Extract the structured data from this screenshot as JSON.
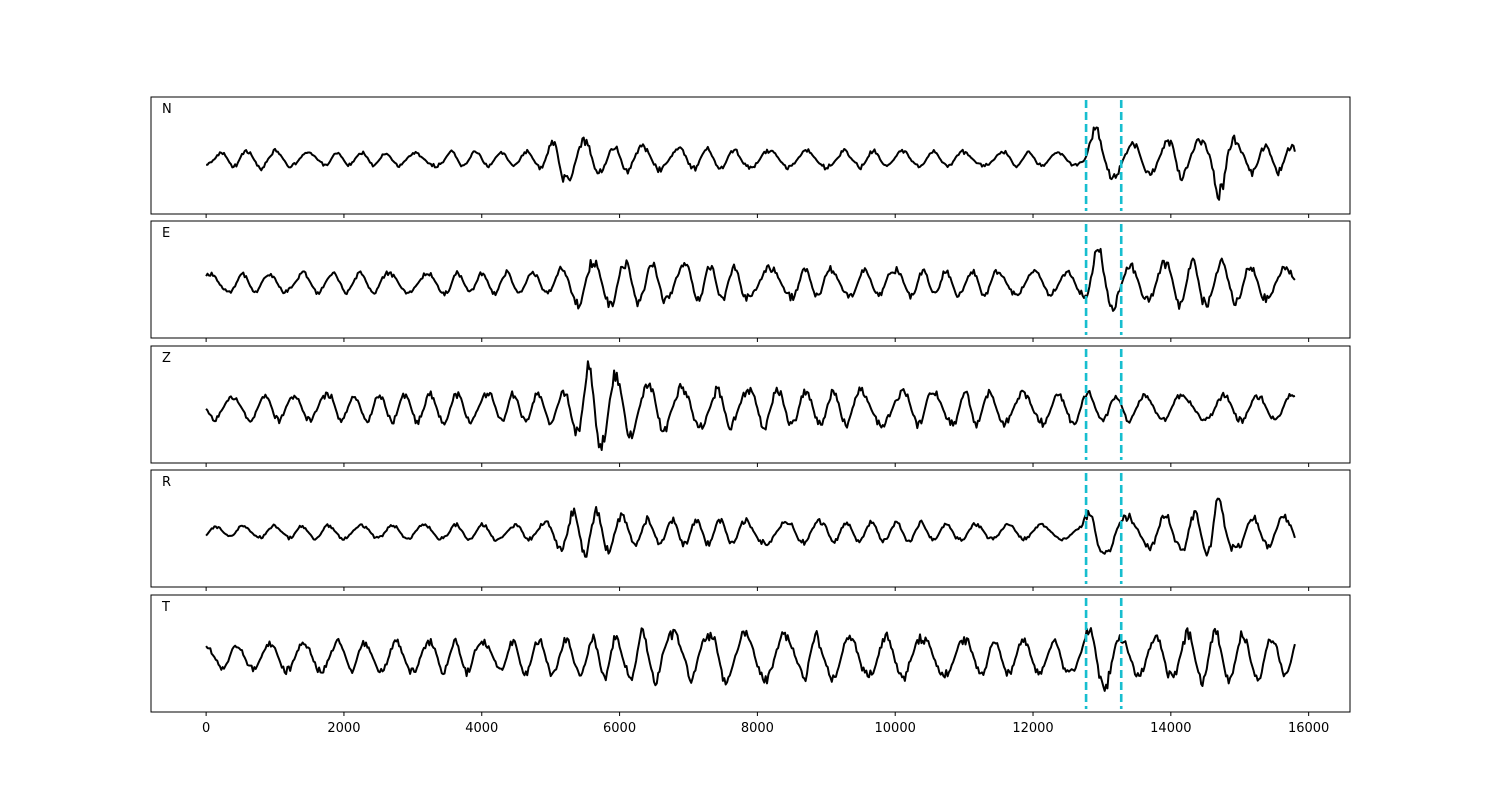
{
  "chart_data": {
    "type": "line",
    "title": "",
    "xlabel": "",
    "ylabel": "",
    "xlim": [
      -800,
      16600
    ],
    "x_ticks": [
      0,
      2000,
      4000,
      6000,
      8000,
      10000,
      12000,
      14000,
      16000
    ],
    "x_tick_labels": [
      "0",
      "2000",
      "4000",
      "6000",
      "8000",
      "10000",
      "12000",
      "14000",
      "16000"
    ],
    "samples": [
      0,
      15800
    ],
    "pick_lines": [
      12770,
      13280
    ],
    "pick_color": "#17becf",
    "trace_color": "#000000",
    "panels": [
      {
        "label": "N",
        "segments": [
          {
            "x": 0,
            "amp": 0.12
          },
          {
            "x": 700,
            "amp": 0.22
          },
          {
            "x": 1500,
            "amp": 0.14
          },
          {
            "x": 4800,
            "amp": 0.18
          },
          {
            "x": 5200,
            "amp": 0.55
          },
          {
            "x": 5800,
            "amp": 0.3
          },
          {
            "x": 7500,
            "amp": 0.22
          },
          {
            "x": 12700,
            "amp": 0.15
          },
          {
            "x": 12900,
            "amp": 0.75
          },
          {
            "x": 13300,
            "amp": 0.32
          },
          {
            "x": 14500,
            "amp": 0.45
          },
          {
            "x": 14650,
            "amp": 0.9
          },
          {
            "x": 15000,
            "amp": 0.35
          },
          {
            "x": 15800,
            "amp": 0.3
          }
        ]
      },
      {
        "label": "E",
        "segments": [
          {
            "x": 0,
            "amp": 0.2
          },
          {
            "x": 1500,
            "amp": 0.22
          },
          {
            "x": 5000,
            "amp": 0.25
          },
          {
            "x": 5500,
            "amp": 0.55
          },
          {
            "x": 6500,
            "amp": 0.45
          },
          {
            "x": 8000,
            "amp": 0.35
          },
          {
            "x": 12700,
            "amp": 0.25
          },
          {
            "x": 12900,
            "amp": 0.9
          },
          {
            "x": 13300,
            "amp": 0.38
          },
          {
            "x": 14500,
            "amp": 0.55
          },
          {
            "x": 15800,
            "amp": 0.3
          }
        ]
      },
      {
        "label": "Z",
        "segments": [
          {
            "x": 0,
            "amp": 0.25
          },
          {
            "x": 1500,
            "amp": 0.3
          },
          {
            "x": 5200,
            "amp": 0.35
          },
          {
            "x": 5600,
            "amp": 1.0
          },
          {
            "x": 6200,
            "amp": 0.6
          },
          {
            "x": 7000,
            "amp": 0.45
          },
          {
            "x": 9000,
            "amp": 0.42
          },
          {
            "x": 12700,
            "amp": 0.35
          },
          {
            "x": 13300,
            "amp": 0.3
          },
          {
            "x": 15800,
            "amp": 0.3
          }
        ]
      },
      {
        "label": "R",
        "segments": [
          {
            "x": 0,
            "amp": 0.12
          },
          {
            "x": 1500,
            "amp": 0.15
          },
          {
            "x": 4800,
            "amp": 0.18
          },
          {
            "x": 5400,
            "amp": 0.55
          },
          {
            "x": 6300,
            "amp": 0.3
          },
          {
            "x": 8000,
            "amp": 0.28
          },
          {
            "x": 12700,
            "amp": 0.15
          },
          {
            "x": 12900,
            "amp": 0.8
          },
          {
            "x": 13300,
            "amp": 0.35
          },
          {
            "x": 14500,
            "amp": 0.45
          },
          {
            "x": 14650,
            "amp": 0.9
          },
          {
            "x": 15000,
            "amp": 0.35
          },
          {
            "x": 15800,
            "amp": 0.35
          }
        ]
      },
      {
        "label": "T",
        "segments": [
          {
            "x": 0,
            "amp": 0.25
          },
          {
            "x": 1500,
            "amp": 0.35
          },
          {
            "x": 5500,
            "amp": 0.4
          },
          {
            "x": 6500,
            "amp": 0.6
          },
          {
            "x": 7500,
            "amp": 0.55
          },
          {
            "x": 10500,
            "amp": 0.45
          },
          {
            "x": 12700,
            "amp": 0.35
          },
          {
            "x": 12900,
            "amp": 0.9
          },
          {
            "x": 13300,
            "amp": 0.4
          },
          {
            "x": 14500,
            "amp": 0.6
          },
          {
            "x": 15800,
            "amp": 0.45
          }
        ]
      }
    ]
  }
}
